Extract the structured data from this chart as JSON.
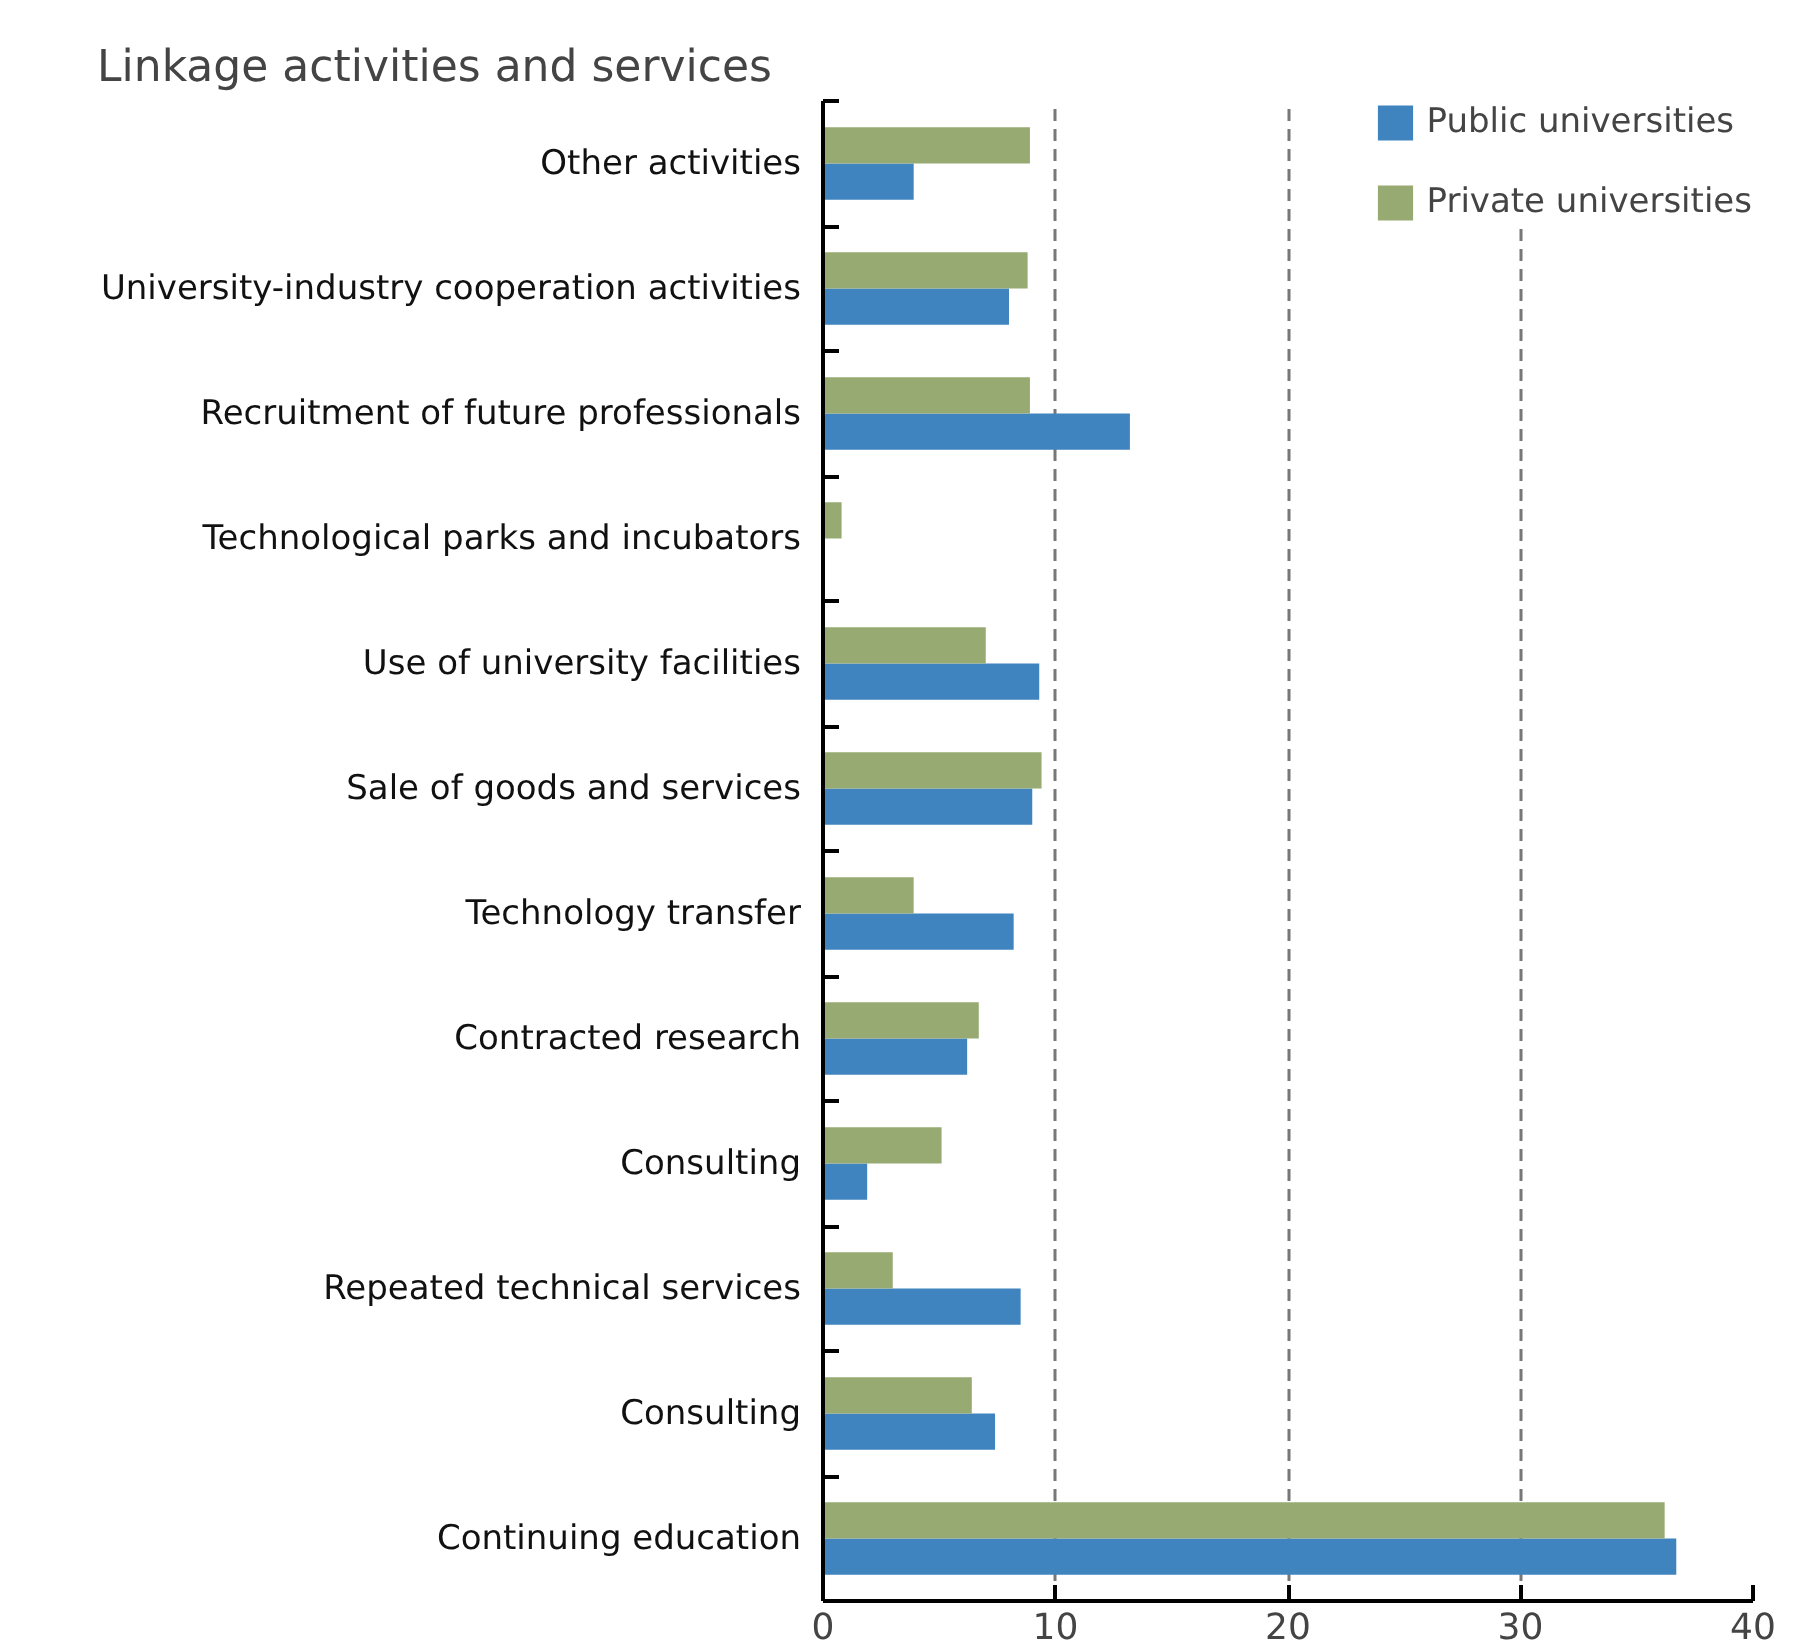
{
  "chart_data": {
    "type": "bar",
    "orientation": "horizontal",
    "title": "Linkage activities and services",
    "categories": [
      "Other activities",
      "University-industry cooperation activities",
      "Recruitment of future professionals",
      "Technological parks and incubators",
      "Use of university facilities",
      "Sale of goods and services",
      "Technology transfer",
      "Contracted research",
      "Consulting",
      "Repeated technical services",
      "Consulting",
      "Continuing education"
    ],
    "series": [
      {
        "name": "Public universities",
        "color": "#3f83bf",
        "values": [
          3.9,
          8.0,
          13.2,
          0,
          9.3,
          9.0,
          8.2,
          6.2,
          1.9,
          8.5,
          7.4,
          36.7
        ]
      },
      {
        "name": "Private universities",
        "color": "#97aa72",
        "values": [
          8.9,
          8.8,
          8.9,
          0.8,
          7.0,
          9.4,
          3.9,
          6.7,
          5.1,
          3.0,
          6.4,
          36.2
        ]
      }
    ],
    "xlim": [
      0,
      40
    ],
    "xticks": [
      0,
      10,
      20,
      30,
      40
    ],
    "grid": "x",
    "legend": "top right"
  }
}
